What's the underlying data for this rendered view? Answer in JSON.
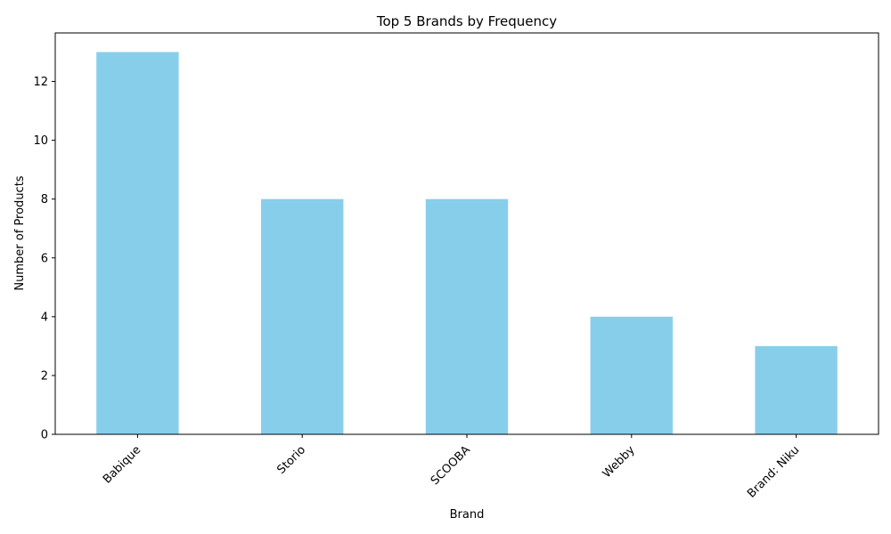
{
  "chart_data": {
    "type": "bar",
    "title": "Top 5 Brands by Frequency",
    "xlabel": "Brand",
    "ylabel": "Number of Products",
    "categories": [
      "Babique",
      "Storio",
      "SCOOBA",
      "Webby",
      "Brand: Niku"
    ],
    "values": [
      13,
      8,
      8,
      4,
      3
    ],
    "ylim": [
      0,
      13.65
    ],
    "yticks": [
      "0",
      "2",
      "4",
      "6",
      "8",
      "10",
      "12"
    ],
    "bar_color": "#87ceeb",
    "grid": false,
    "legend": "none",
    "xtick_rotation_deg": 45
  }
}
